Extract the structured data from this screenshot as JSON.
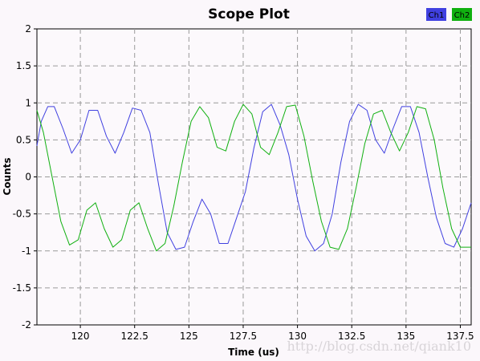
{
  "chart_data": {
    "type": "line",
    "title": "Scope Plot",
    "xlabel": "Time (us)",
    "ylabel": "Counts",
    "xlim": [
      118.0,
      138.0
    ],
    "ylim": [
      -2,
      2
    ],
    "x_ticks": [
      120,
      122.5,
      125,
      127.5,
      130,
      132.5,
      135,
      137.5
    ],
    "x_tick_labels": [
      "120",
      "122.5",
      "125",
      "127.5",
      "130",
      "132.5",
      "135",
      "137.5"
    ],
    "y_ticks": [
      -2,
      -1.5,
      -1,
      -0.5,
      0,
      0.5,
      1,
      1.5,
      2
    ],
    "y_tick_labels": [
      "-2",
      "-1.5",
      "-1",
      "-0.5",
      "0",
      "0.5",
      "1",
      "1.5",
      "2"
    ],
    "grid": true,
    "legend_position": "top-right",
    "series": [
      {
        "name": "Ch1",
        "color": "#4040e0",
        "x": [
          118.0,
          118.2,
          118.5,
          118.8,
          119.2,
          119.6,
          120.0,
          120.4,
          120.8,
          121.2,
          121.6,
          122.0,
          122.4,
          122.8,
          123.2,
          123.6,
          124.0,
          124.4,
          124.8,
          125.2,
          125.6,
          126.0,
          126.4,
          126.8,
          127.2,
          127.6,
          128.0,
          128.4,
          128.8,
          129.2,
          129.6,
          130.0,
          130.4,
          130.8,
          131.2,
          131.6,
          132.0,
          132.4,
          132.8,
          133.2,
          133.6,
          134.0,
          134.4,
          134.8,
          135.2,
          135.6,
          136.0,
          136.4,
          136.8,
          137.2,
          137.6,
          138.0
        ],
        "y": [
          0.42,
          0.75,
          0.95,
          0.95,
          0.65,
          0.32,
          0.5,
          0.9,
          0.9,
          0.55,
          0.32,
          0.6,
          0.93,
          0.9,
          0.6,
          -0.1,
          -0.75,
          -0.98,
          -0.95,
          -0.6,
          -0.3,
          -0.5,
          -0.9,
          -0.9,
          -0.55,
          -0.2,
          0.4,
          0.88,
          0.98,
          0.7,
          0.3,
          -0.3,
          -0.8,
          -1.0,
          -0.9,
          -0.5,
          0.2,
          0.75,
          0.98,
          0.9,
          0.5,
          0.32,
          0.65,
          0.95,
          0.95,
          0.6,
          0.0,
          -0.55,
          -0.9,
          -0.95,
          -0.7,
          -0.35
        ]
      },
      {
        "name": "Ch2",
        "color": "#10b010",
        "x": [
          118.0,
          118.3,
          118.7,
          119.1,
          119.5,
          119.9,
          120.3,
          120.7,
          121.1,
          121.5,
          121.9,
          122.3,
          122.7,
          123.1,
          123.5,
          123.9,
          124.3,
          124.7,
          125.1,
          125.5,
          125.9,
          126.3,
          126.7,
          127.1,
          127.5,
          127.9,
          128.3,
          128.7,
          129.1,
          129.5,
          129.9,
          130.3,
          130.7,
          131.1,
          131.5,
          131.9,
          132.3,
          132.7,
          133.1,
          133.5,
          133.9,
          134.3,
          134.7,
          135.1,
          135.5,
          135.9,
          136.3,
          136.7,
          137.1,
          137.5,
          138.0
        ],
        "y": [
          0.9,
          0.6,
          0.0,
          -0.6,
          -0.92,
          -0.85,
          -0.45,
          -0.35,
          -0.7,
          -0.95,
          -0.85,
          -0.45,
          -0.35,
          -0.7,
          -1.0,
          -0.9,
          -0.4,
          0.2,
          0.75,
          0.95,
          0.8,
          0.4,
          0.35,
          0.75,
          0.98,
          0.85,
          0.4,
          0.3,
          0.6,
          0.95,
          0.97,
          0.55,
          -0.05,
          -0.6,
          -0.95,
          -0.98,
          -0.7,
          -0.15,
          0.45,
          0.85,
          0.9,
          0.6,
          0.35,
          0.6,
          0.95,
          0.92,
          0.5,
          -0.15,
          -0.7,
          -0.95,
          -0.95
        ]
      }
    ]
  },
  "watermark": "http://blog.csdn.net/qiank10"
}
